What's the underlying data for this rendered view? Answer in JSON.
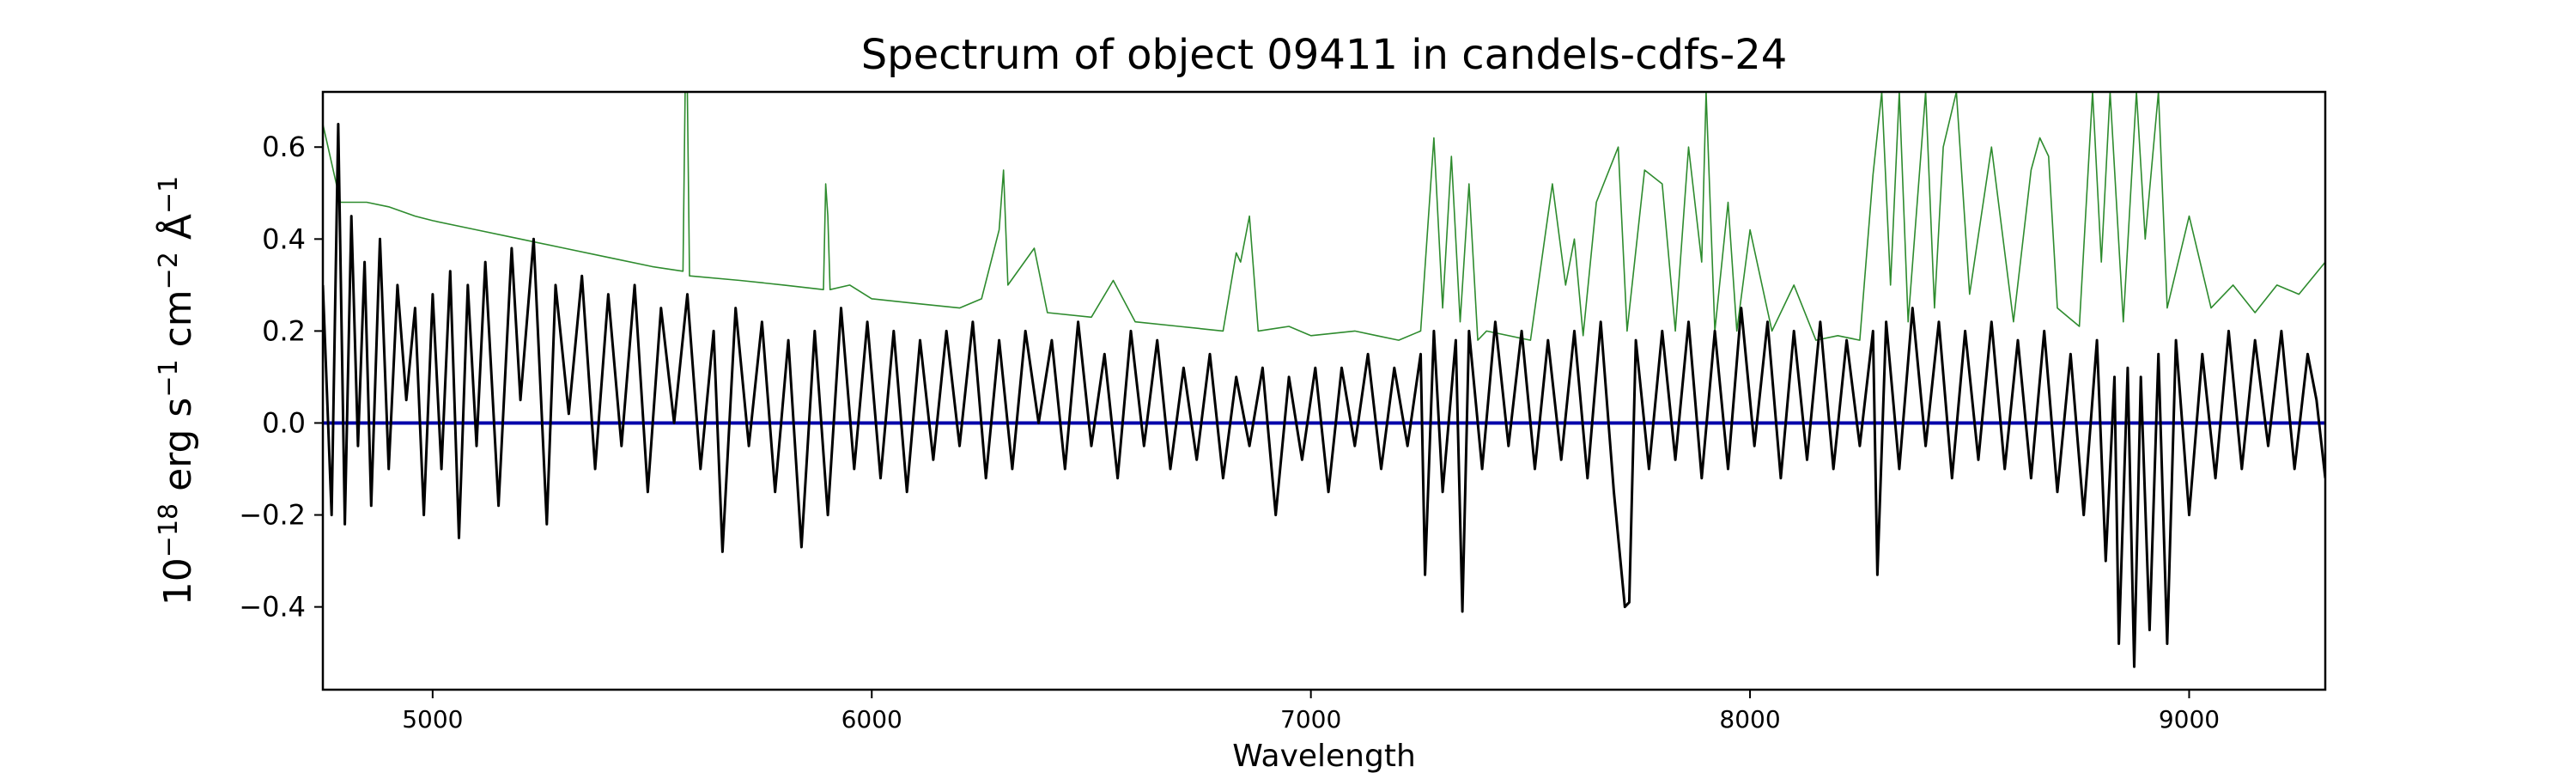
{
  "chart_data": {
    "type": "line",
    "title": "Spectrum of object 09411 in candels-cdfs-24",
    "xlabel": "Wavelength",
    "ylabel": {
      "base": "10",
      "exp": "−18",
      "unit1": " erg s",
      "exp2": "−1",
      "unit2": " cm",
      "exp3": "−2",
      "unit3": " Å",
      "exp4": "−1"
    },
    "xlim": [
      4750,
      9310
    ],
    "ylim": [
      -0.58,
      0.72
    ],
    "xticks": [
      5000,
      6000,
      7000,
      8000,
      9000
    ],
    "xtick_labels": [
      "5000",
      "6000",
      "7000",
      "8000",
      "9000"
    ],
    "yticks": [
      -0.4,
      -0.2,
      0.0,
      0.2,
      0.4,
      0.6
    ],
    "ytick_labels": [
      "−0.4",
      "−0.2",
      "0.0",
      "0.2",
      "0.4",
      "0.6"
    ],
    "grid": false,
    "series": [
      {
        "role": "error",
        "color": "#2e8b2e",
        "points": [
          [
            4750,
            0.65
          ],
          [
            4790,
            0.48
          ],
          [
            4850,
            0.48
          ],
          [
            4900,
            0.47
          ],
          [
            4960,
            0.45
          ],
          [
            5000,
            0.44
          ],
          [
            5100,
            0.42
          ],
          [
            5200,
            0.4
          ],
          [
            5300,
            0.38
          ],
          [
            5400,
            0.36
          ],
          [
            5500,
            0.34
          ],
          [
            5570,
            0.33
          ],
          [
            5575,
            0.72
          ],
          [
            5580,
            0.72
          ],
          [
            5585,
            0.32
          ],
          [
            5700,
            0.31
          ],
          [
            5800,
            0.3
          ],
          [
            5890,
            0.29
          ],
          [
            5895,
            0.52
          ],
          [
            5900,
            0.45
          ],
          [
            5905,
            0.29
          ],
          [
            5950,
            0.3
          ],
          [
            6000,
            0.27
          ],
          [
            6100,
            0.26
          ],
          [
            6200,
            0.25
          ],
          [
            6250,
            0.27
          ],
          [
            6290,
            0.42
          ],
          [
            6300,
            0.55
          ],
          [
            6310,
            0.3
          ],
          [
            6370,
            0.38
          ],
          [
            6400,
            0.24
          ],
          [
            6500,
            0.23
          ],
          [
            6550,
            0.31
          ],
          [
            6600,
            0.22
          ],
          [
            6700,
            0.21
          ],
          [
            6800,
            0.2
          ],
          [
            6830,
            0.37
          ],
          [
            6840,
            0.35
          ],
          [
            6860,
            0.45
          ],
          [
            6880,
            0.2
          ],
          [
            6950,
            0.21
          ],
          [
            7000,
            0.19
          ],
          [
            7100,
            0.2
          ],
          [
            7150,
            0.19
          ],
          [
            7200,
            0.18
          ],
          [
            7250,
            0.2
          ],
          [
            7280,
            0.62
          ],
          [
            7300,
            0.25
          ],
          [
            7320,
            0.58
          ],
          [
            7340,
            0.22
          ],
          [
            7360,
            0.52
          ],
          [
            7380,
            0.18
          ],
          [
            7400,
            0.2
          ],
          [
            7500,
            0.18
          ],
          [
            7550,
            0.52
          ],
          [
            7580,
            0.3
          ],
          [
            7600,
            0.4
          ],
          [
            7620,
            0.19
          ],
          [
            7650,
            0.48
          ],
          [
            7700,
            0.6
          ],
          [
            7720,
            0.2
          ],
          [
            7760,
            0.55
          ],
          [
            7800,
            0.52
          ],
          [
            7830,
            0.2
          ],
          [
            7860,
            0.6
          ],
          [
            7890,
            0.35
          ],
          [
            7900,
            0.72
          ],
          [
            7920,
            0.2
          ],
          [
            7950,
            0.48
          ],
          [
            7970,
            0.2
          ],
          [
            8000,
            0.42
          ],
          [
            8050,
            0.2
          ],
          [
            8100,
            0.3
          ],
          [
            8150,
            0.18
          ],
          [
            8200,
            0.19
          ],
          [
            8250,
            0.18
          ],
          [
            8280,
            0.54
          ],
          [
            8300,
            0.72
          ],
          [
            8320,
            0.3
          ],
          [
            8340,
            0.72
          ],
          [
            8360,
            0.22
          ],
          [
            8400,
            0.72
          ],
          [
            8420,
            0.25
          ],
          [
            8440,
            0.6
          ],
          [
            8470,
            0.72
          ],
          [
            8500,
            0.28
          ],
          [
            8550,
            0.6
          ],
          [
            8600,
            0.22
          ],
          [
            8640,
            0.55
          ],
          [
            8660,
            0.62
          ],
          [
            8680,
            0.58
          ],
          [
            8700,
            0.25
          ],
          [
            8750,
            0.21
          ],
          [
            8780,
            0.72
          ],
          [
            8800,
            0.35
          ],
          [
            8820,
            0.72
          ],
          [
            8850,
            0.22
          ],
          [
            8880,
            0.72
          ],
          [
            8900,
            0.4
          ],
          [
            8930,
            0.72
          ],
          [
            8950,
            0.25
          ],
          [
            9000,
            0.45
          ],
          [
            9050,
            0.25
          ],
          [
            9100,
            0.3
          ],
          [
            9150,
            0.24
          ],
          [
            9200,
            0.3
          ],
          [
            9250,
            0.28
          ],
          [
            9310,
            0.35
          ]
        ]
      },
      {
        "role": "model",
        "color": "#0000aa",
        "points": [
          [
            4750,
            0.0
          ],
          [
            9310,
            0.0
          ]
        ]
      },
      {
        "role": "flux",
        "color": "#000000",
        "points": [
          [
            4750,
            0.3
          ],
          [
            4770,
            -0.2
          ],
          [
            4785,
            0.65
          ],
          [
            4800,
            -0.22
          ],
          [
            4815,
            0.45
          ],
          [
            4830,
            -0.05
          ],
          [
            4845,
            0.35
          ],
          [
            4860,
            -0.18
          ],
          [
            4880,
            0.4
          ],
          [
            4900,
            -0.1
          ],
          [
            4920,
            0.3
          ],
          [
            4940,
            0.05
          ],
          [
            4960,
            0.25
          ],
          [
            4980,
            -0.2
          ],
          [
            5000,
            0.28
          ],
          [
            5020,
            -0.1
          ],
          [
            5040,
            0.33
          ],
          [
            5060,
            -0.25
          ],
          [
            5080,
            0.3
          ],
          [
            5100,
            -0.05
          ],
          [
            5120,
            0.35
          ],
          [
            5150,
            -0.18
          ],
          [
            5180,
            0.38
          ],
          [
            5200,
            0.05
          ],
          [
            5230,
            0.4
          ],
          [
            5260,
            -0.22
          ],
          [
            5280,
            0.3
          ],
          [
            5310,
            0.02
          ],
          [
            5340,
            0.32
          ],
          [
            5370,
            -0.1
          ],
          [
            5400,
            0.28
          ],
          [
            5430,
            -0.05
          ],
          [
            5460,
            0.3
          ],
          [
            5490,
            -0.15
          ],
          [
            5520,
            0.25
          ],
          [
            5550,
            0.0
          ],
          [
            5580,
            0.28
          ],
          [
            5610,
            -0.1
          ],
          [
            5640,
            0.2
          ],
          [
            5660,
            -0.28
          ],
          [
            5690,
            0.25
          ],
          [
            5720,
            -0.05
          ],
          [
            5750,
            0.22
          ],
          [
            5780,
            -0.15
          ],
          [
            5810,
            0.18
          ],
          [
            5840,
            -0.27
          ],
          [
            5870,
            0.2
          ],
          [
            5900,
            -0.2
          ],
          [
            5930,
            0.25
          ],
          [
            5960,
            -0.1
          ],
          [
            5990,
            0.22
          ],
          [
            6020,
            -0.12
          ],
          [
            6050,
            0.2
          ],
          [
            6080,
            -0.15
          ],
          [
            6110,
            0.18
          ],
          [
            6140,
            -0.08
          ],
          [
            6170,
            0.2
          ],
          [
            6200,
            -0.05
          ],
          [
            6230,
            0.22
          ],
          [
            6260,
            -0.12
          ],
          [
            6290,
            0.18
          ],
          [
            6320,
            -0.1
          ],
          [
            6350,
            0.2
          ],
          [
            6380,
            0.0
          ],
          [
            6410,
            0.18
          ],
          [
            6440,
            -0.1
          ],
          [
            6470,
            0.22
          ],
          [
            6500,
            -0.05
          ],
          [
            6530,
            0.15
          ],
          [
            6560,
            -0.12
          ],
          [
            6590,
            0.2
          ],
          [
            6620,
            -0.05
          ],
          [
            6650,
            0.18
          ],
          [
            6680,
            -0.1
          ],
          [
            6710,
            0.12
          ],
          [
            6740,
            -0.08
          ],
          [
            6770,
            0.15
          ],
          [
            6800,
            -0.12
          ],
          [
            6830,
            0.1
          ],
          [
            6860,
            -0.05
          ],
          [
            6890,
            0.12
          ],
          [
            6920,
            -0.2
          ],
          [
            6950,
            0.1
          ],
          [
            6980,
            -0.08
          ],
          [
            7010,
            0.12
          ],
          [
            7040,
            -0.15
          ],
          [
            7070,
            0.12
          ],
          [
            7100,
            -0.05
          ],
          [
            7130,
            0.15
          ],
          [
            7160,
            -0.1
          ],
          [
            7190,
            0.12
          ],
          [
            7220,
            -0.05
          ],
          [
            7250,
            0.15
          ],
          [
            7260,
            -0.33
          ],
          [
            7280,
            0.2
          ],
          [
            7300,
            -0.15
          ],
          [
            7330,
            0.18
          ],
          [
            7345,
            -0.41
          ],
          [
            7360,
            0.2
          ],
          [
            7390,
            -0.1
          ],
          [
            7420,
            0.22
          ],
          [
            7450,
            -0.05
          ],
          [
            7480,
            0.2
          ],
          [
            7510,
            -0.1
          ],
          [
            7540,
            0.18
          ],
          [
            7570,
            -0.08
          ],
          [
            7600,
            0.2
          ],
          [
            7630,
            -0.12
          ],
          [
            7660,
            0.22
          ],
          [
            7690,
            -0.15
          ],
          [
            7715,
            -0.4
          ],
          [
            7725,
            -0.39
          ],
          [
            7740,
            0.18
          ],
          [
            7770,
            -0.1
          ],
          [
            7800,
            0.2
          ],
          [
            7830,
            -0.08
          ],
          [
            7860,
            0.22
          ],
          [
            7890,
            -0.12
          ],
          [
            7920,
            0.2
          ],
          [
            7950,
            -0.1
          ],
          [
            7980,
            0.25
          ],
          [
            8010,
            -0.05
          ],
          [
            8040,
            0.22
          ],
          [
            8070,
            -0.12
          ],
          [
            8100,
            0.2
          ],
          [
            8130,
            -0.08
          ],
          [
            8160,
            0.22
          ],
          [
            8190,
            -0.1
          ],
          [
            8220,
            0.18
          ],
          [
            8250,
            -0.05
          ],
          [
            8280,
            0.2
          ],
          [
            8290,
            -0.33
          ],
          [
            8310,
            0.22
          ],
          [
            8340,
            -0.1
          ],
          [
            8370,
            0.25
          ],
          [
            8400,
            -0.05
          ],
          [
            8430,
            0.22
          ],
          [
            8460,
            -0.12
          ],
          [
            8490,
            0.2
          ],
          [
            8520,
            -0.08
          ],
          [
            8550,
            0.22
          ],
          [
            8580,
            -0.1
          ],
          [
            8610,
            0.18
          ],
          [
            8640,
            -0.12
          ],
          [
            8670,
            0.2
          ],
          [
            8700,
            -0.15
          ],
          [
            8730,
            0.15
          ],
          [
            8760,
            -0.2
          ],
          [
            8790,
            0.18
          ],
          [
            8810,
            -0.3
          ],
          [
            8830,
            0.1
          ],
          [
            8840,
            -0.48
          ],
          [
            8860,
            0.12
          ],
          [
            8875,
            -0.53
          ],
          [
            8890,
            0.1
          ],
          [
            8910,
            -0.45
          ],
          [
            8930,
            0.15
          ],
          [
            8950,
            -0.48
          ],
          [
            8970,
            0.18
          ],
          [
            9000,
            -0.2
          ],
          [
            9030,
            0.15
          ],
          [
            9060,
            -0.12
          ],
          [
            9090,
            0.2
          ],
          [
            9120,
            -0.1
          ],
          [
            9150,
            0.18
          ],
          [
            9180,
            -0.05
          ],
          [
            9210,
            0.2
          ],
          [
            9240,
            -0.1
          ],
          [
            9270,
            0.15
          ],
          [
            9290,
            0.05
          ],
          [
            9310,
            -0.12
          ]
        ]
      }
    ]
  }
}
